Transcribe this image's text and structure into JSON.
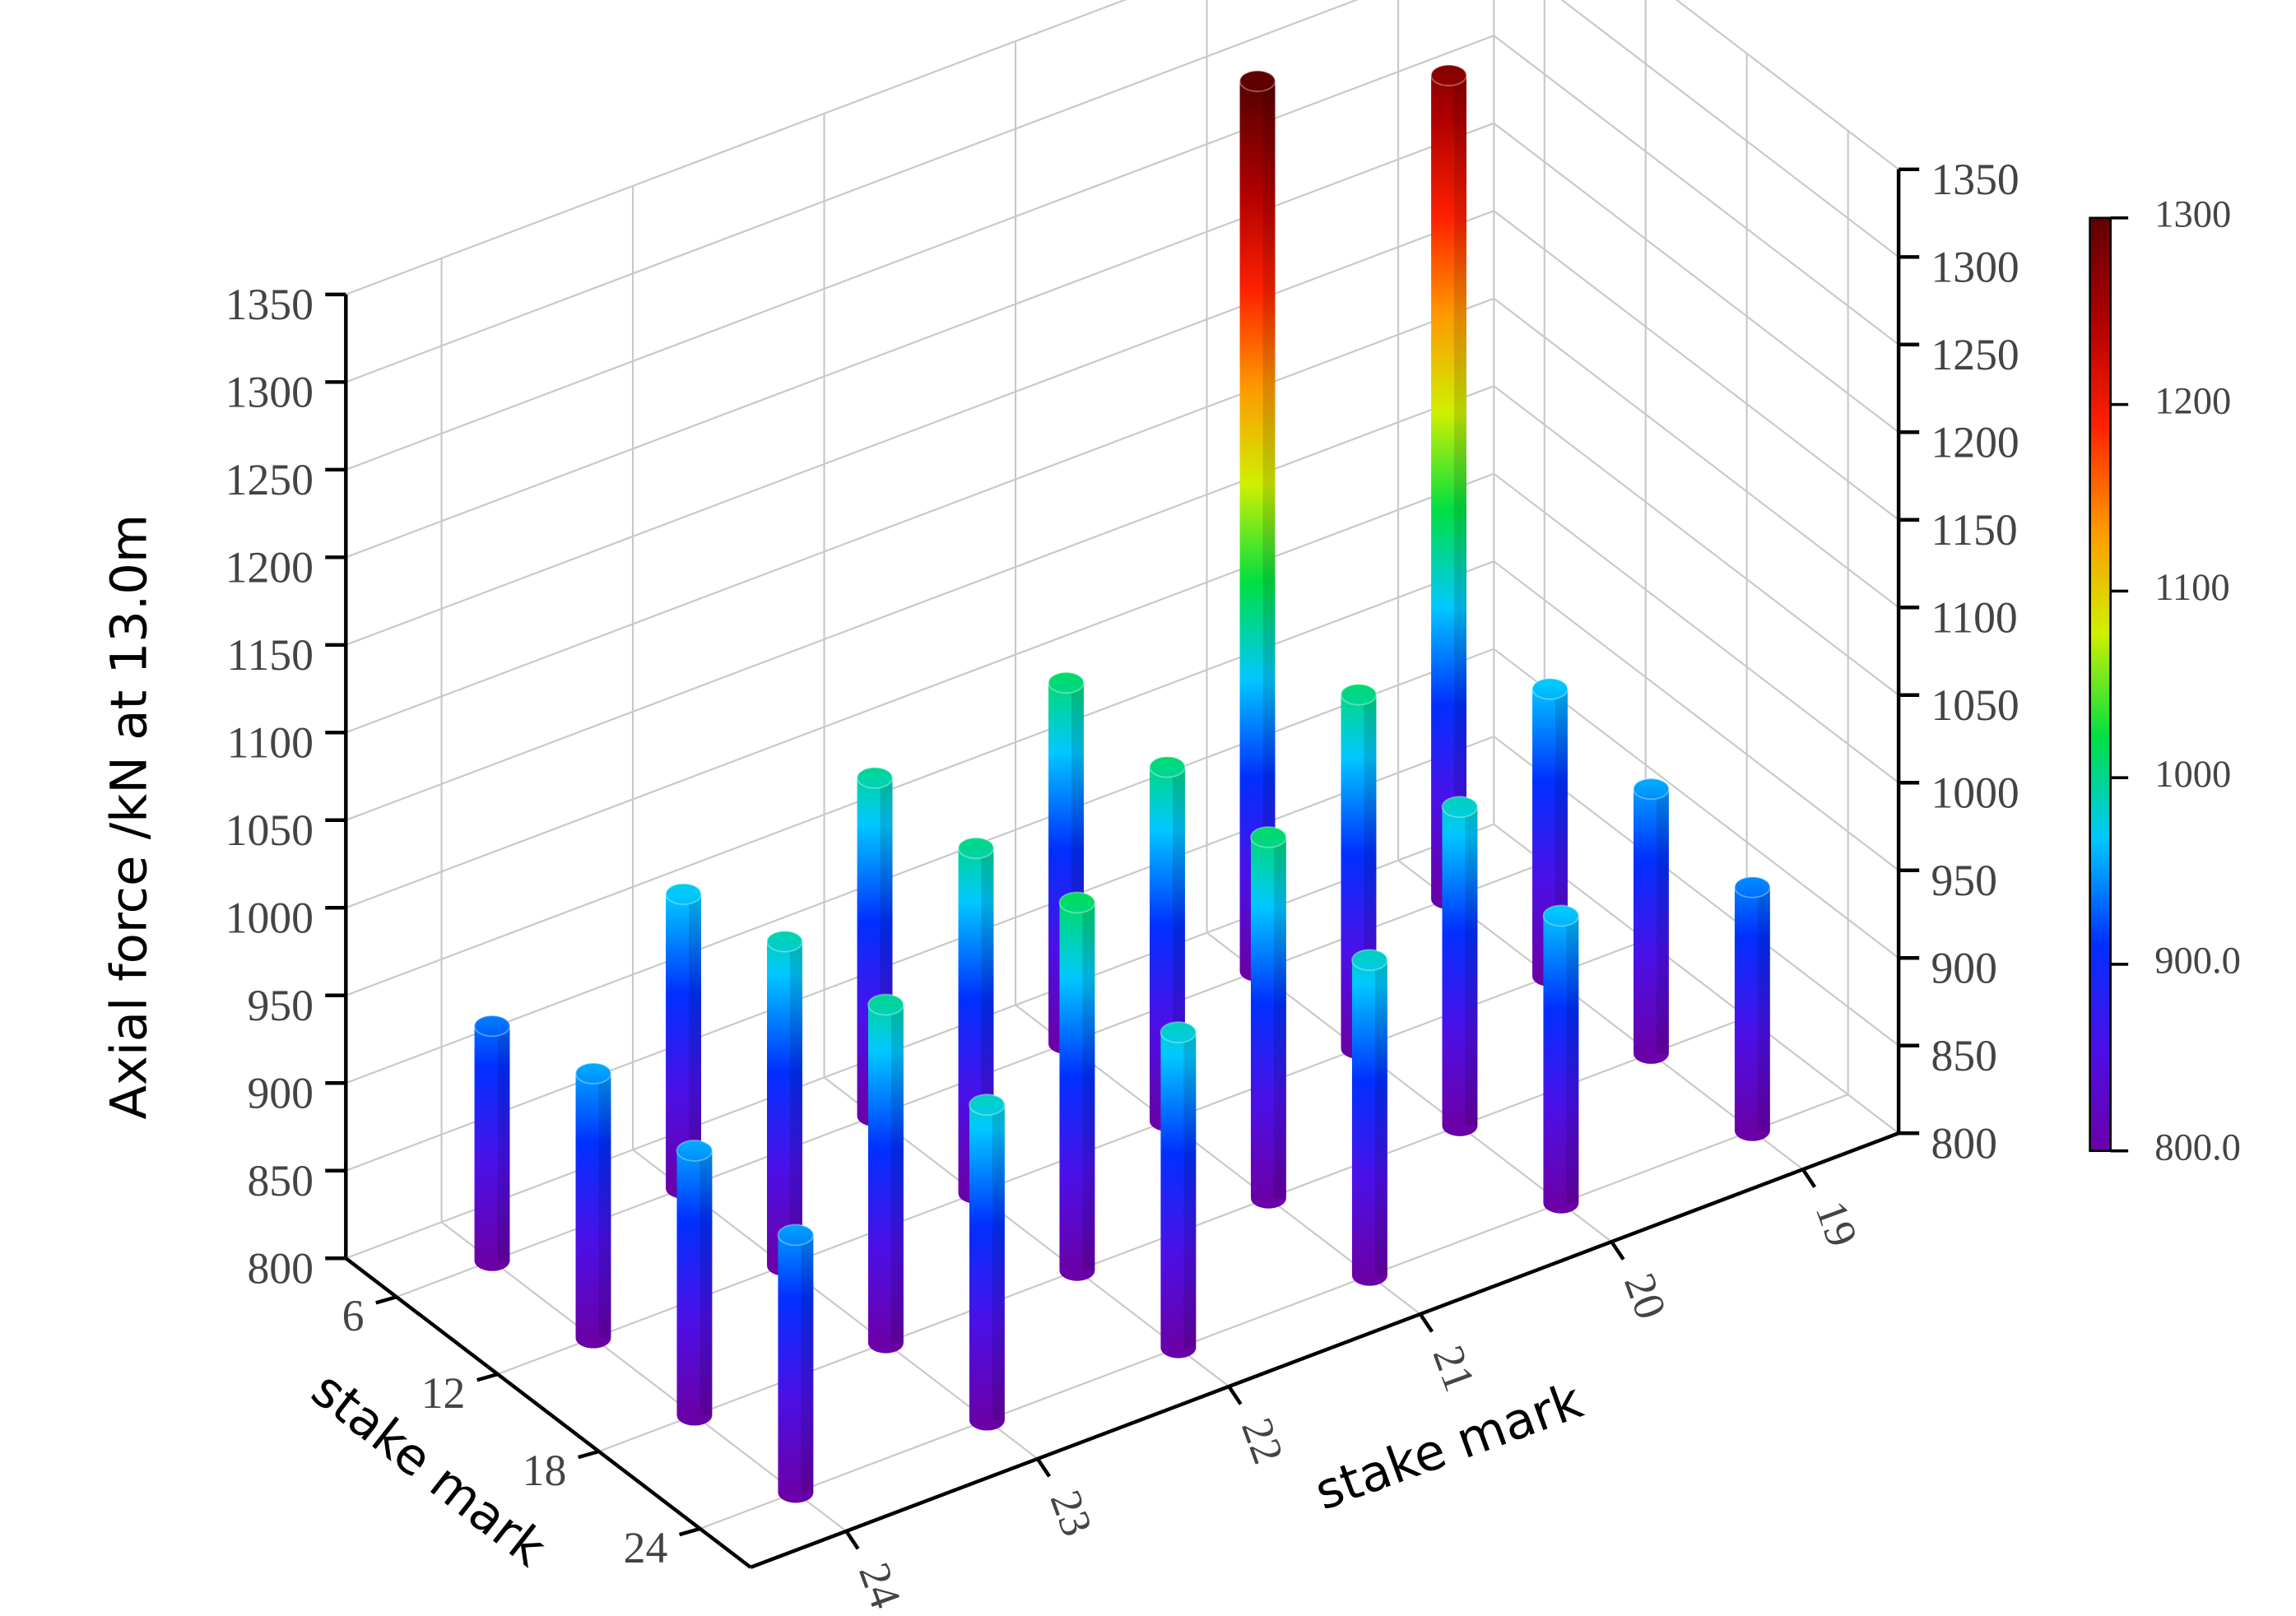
{
  "chart_data": {
    "type": "bar3d",
    "z_label": "Axial force /kN at 13.0m",
    "x_label": "stake mark",
    "y_label": "stake mark",
    "x_categories": [
      "6",
      "12",
      "18",
      "24"
    ],
    "y_categories": [
      "19",
      "20",
      "21",
      "22",
      "23",
      "24"
    ],
    "values": [
      [
        1270,
        1308,
        1006,
        993,
        968,
        934
      ],
      [
        964,
        1002,
        1002,
        997,
        985,
        951
      ],
      [
        951,
        982,
        1006,
        1010,
        993,
        951
      ],
      [
        939,
        964,
        980,
        980,
        980,
        947
      ]
    ],
    "zlim": [
      800,
      1350
    ],
    "zticks": [
      800,
      850,
      900,
      950,
      1000,
      1050,
      1100,
      1150,
      1200,
      1250,
      1300,
      1350
    ],
    "grid": true,
    "clim": [
      800,
      1300
    ],
    "colormap": [
      "#6a00a8",
      "#4b10e8",
      "#0030ff",
      "#00c8ff",
      "#00e040",
      "#d0f000",
      "#ff9800",
      "#ff2000",
      "#b00000",
      "#600000"
    ],
    "cticks": [
      {
        "value": 800,
        "label": "800.0"
      },
      {
        "value": 900,
        "label": "900.0"
      },
      1000,
      1100,
      1200,
      1300
    ]
  }
}
